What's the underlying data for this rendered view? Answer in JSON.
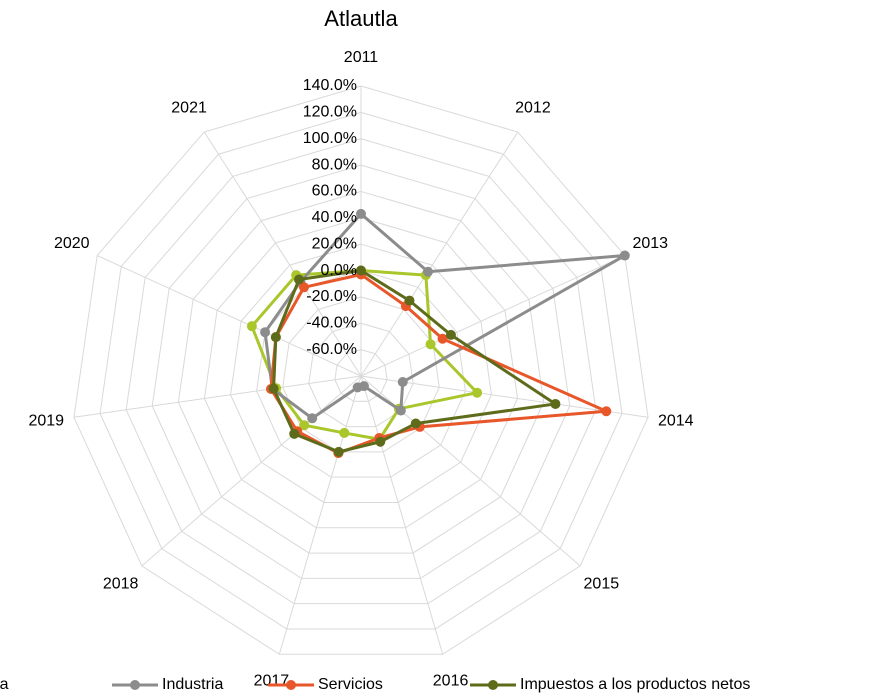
{
  "chart_data": {
    "type": "radar",
    "title": "Atlautla",
    "categories": [
      "2011",
      "2012",
      "2013",
      "2014",
      "2015",
      "2016",
      "2017",
      "2018",
      "2019",
      "2020",
      "2021"
    ],
    "ylim": [
      -80,
      140
    ],
    "yticks": [
      {
        "value": -60,
        "label": "-60.0%"
      },
      {
        "value": -40,
        "label": "-40.0%"
      },
      {
        "value": -20,
        "label": "-20.0%"
      },
      {
        "value": 0,
        "label": "0.0%"
      },
      {
        "value": 20,
        "label": "20.0%"
      },
      {
        "value": 40,
        "label": "40.0%"
      },
      {
        "value": 60,
        "label": "60.0%"
      },
      {
        "value": 80,
        "label": "80.0%"
      },
      {
        "value": 100,
        "label": "100.0%"
      },
      {
        "value": 120,
        "label": "120.0%"
      },
      {
        "value": 140,
        "label": "140.0%"
      }
    ],
    "grid": true,
    "legend": "bottom",
    "series": [
      {
        "name": "Agricultura",
        "color": "#a9c62b",
        "values": [
          0,
          11,
          -22,
          9,
          -42,
          -30,
          -35,
          -23,
          -15,
          11,
          11
        ]
      },
      {
        "name": "Industria",
        "color": "#8c8c8c",
        "values": [
          43,
          14,
          140,
          -48,
          -40,
          -72,
          -71,
          -31,
          -12,
          0,
          5
        ]
      },
      {
        "name": "Servicios",
        "color": "#e8572a",
        "values": [
          -3,
          -17,
          -12,
          108,
          -21,
          -31,
          -19,
          -16,
          -11,
          -9,
          0
        ]
      },
      {
        "name": "Impuestos a los productos netos",
        "color": "#5e6b1a",
        "values": [
          0,
          -12,
          -5,
          69,
          -25,
          -28,
          -20,
          -13,
          -13,
          -9,
          7
        ]
      }
    ]
  }
}
